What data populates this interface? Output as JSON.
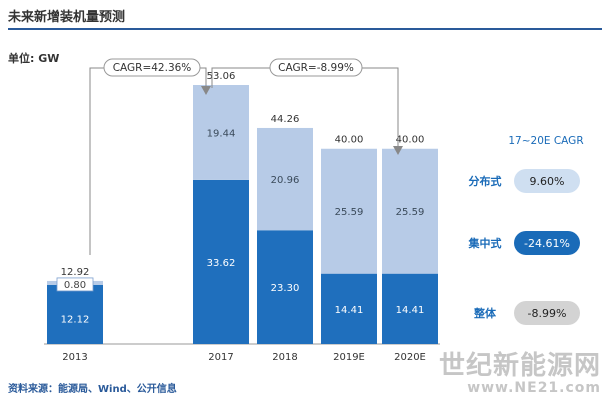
{
  "title": "未来新增装机量预测",
  "unit_label": "单位: GW",
  "source": "资料来源：能源局、Wind、公开信息",
  "watermark": {
    "text": "世纪新能源网",
    "url": "www.NE21.com"
  },
  "colors": {
    "dark": "#1f6fbd",
    "light": "#b7cbe7",
    "pill_light": "#cfdff1",
    "pill_dark": "#1a6bb8",
    "pill_gray": "#d3d3d3",
    "label_blue": "#1a6bb8",
    "arrow": "#888888"
  },
  "chart_data": {
    "type": "bar",
    "stacked": true,
    "categories": [
      "2013",
      "2017",
      "2018",
      "2019E",
      "2020E"
    ],
    "series": [
      {
        "name": "集中式",
        "values": [
          12.12,
          33.62,
          23.3,
          14.41,
          14.41
        ]
      },
      {
        "name": "分布式",
        "values": [
          0.8,
          19.44,
          20.96,
          25.59,
          25.59
        ]
      }
    ],
    "segment_labels": {
      "bottom": [
        "12.12",
        "33.62",
        "23.30",
        "14.41",
        "14.41"
      ],
      "top": [
        "0.80",
        "19.44",
        "20.96",
        "25.59",
        "25.59"
      ]
    },
    "total_labels": [
      "12.92",
      "53.06",
      "44.26",
      "40.00",
      "40.00"
    ],
    "ylim": [
      0,
      60
    ],
    "annotations": [
      {
        "text": "CAGR=42.36%",
        "from": "2013",
        "to": "2017"
      },
      {
        "text": "CAGR=-8.99%",
        "from": "2017",
        "to": "2020E"
      }
    ]
  },
  "cagr_table": {
    "header": "17~20E CAGR",
    "rows": [
      {
        "label": "分布式",
        "value": "9.60%",
        "style": "light"
      },
      {
        "label": "集中式",
        "value": "-24.61%",
        "style": "dark"
      },
      {
        "label": "整体",
        "value": "-8.99%",
        "style": "gray"
      }
    ]
  }
}
